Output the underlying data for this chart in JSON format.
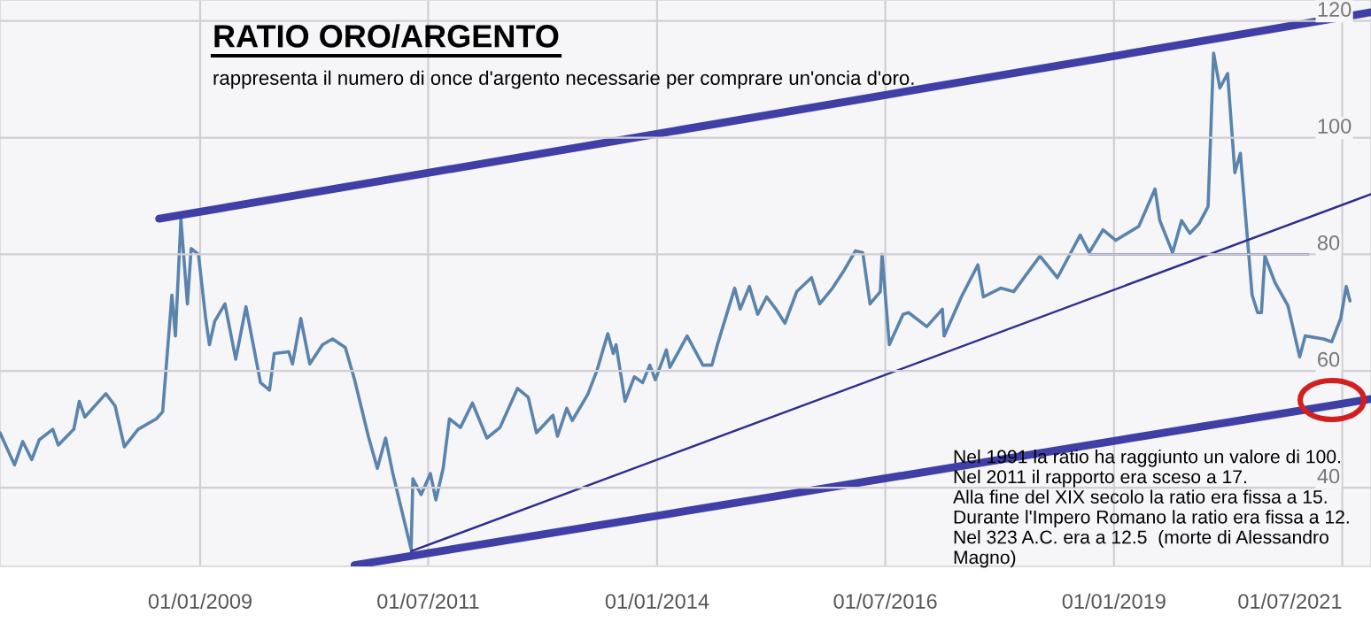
{
  "chart_data": {
    "type": "line",
    "title": "RATIO ORO/ARGENTO",
    "subtitle": "rappresenta il numero di once d'argento necessarie per comprare un'oncia d'oro.",
    "annotations": [
      "Nel 1991 la ratio ha raggiunto un valore di 100.\nNel 2011 il rapporto era sceso a 17.\nAlla fine del XIX secolo la ratio era fissa a 15.\nDurante l'Impero Romano la ratio era fissa a 12.\nNel 323 A.C. era a 12.5  (morte di Alessandro\nMagno)"
    ],
    "xlim": [
      "2006-10-24",
      "2021-10-24"
    ],
    "ylim": [
      26.5,
      123.6
    ],
    "xticks": [
      {
        "value": "2009-01-01",
        "label": "01/01/2009"
      },
      {
        "value": "2011-07-01",
        "label": "01/07/2011"
      },
      {
        "value": "2014-01-01",
        "label": "01/01/2014"
      },
      {
        "value": "2016-07-01",
        "label": "01/07/2016"
      },
      {
        "value": "2019-01-01",
        "label": "01/01/2019"
      },
      {
        "value": "2021-07-01",
        "label": "01/07/2021"
      }
    ],
    "yticks": [
      40,
      60,
      80,
      100,
      120
    ],
    "grid": true,
    "series": [
      {
        "color": "#5b84ad",
        "x": [
          "2006-10-24",
          "2006-12-21",
          "2007-01-23",
          "2007-02-28",
          "2007-03-30",
          "2007-05-23",
          "2007-06-14",
          "2007-08-15",
          "2007-09-06",
          "2007-09-28",
          "2007-12-21",
          "2008-01-27",
          "2008-03-04",
          "2008-04-28",
          "2008-07-10",
          "2008-08-04",
          "2008-09-10",
          "2008-09-24",
          "2008-10-16",
          "2008-11-11",
          "2008-11-26",
          "2008-12-25",
          "2009-01-23",
          "2009-02-07",
          "2009-02-28",
          "2009-04-10",
          "2009-05-23",
          "2009-07-03",
          "2009-08-30",
          "2009-10-05",
          "2009-10-24",
          "2009-12-21",
          "2010-01-05",
          "2010-02-07",
          "2010-03-15",
          "2010-05-05",
          "2010-06-14",
          "2010-08-04",
          "2010-09-10",
          "2010-11-04",
          "2010-12-10",
          "2011-01-12",
          "2011-02-10",
          "2011-04-24",
          "2011-05-01",
          "2011-06-03",
          "2011-07-10",
          "2011-08-01",
          "2011-08-30",
          "2011-09-24",
          "2011-11-07",
          "2011-12-25",
          "2012-02-21",
          "2012-04-13",
          "2012-06-22",
          "2012-08-04",
          "2012-09-06",
          "2012-11-11",
          "2012-11-29",
          "2013-01-05",
          "2013-01-27",
          "2013-03-30",
          "2013-05-05",
          "2013-06-18",
          "2013-07-10",
          "2013-07-21",
          "2013-08-26",
          "2013-10-02",
          "2013-11-04",
          "2013-12-03",
          "2013-12-25",
          "2014-02-07",
          "2014-02-21",
          "2014-05-01",
          "2014-07-03",
          "2014-08-08",
          "2014-08-30",
          "2014-09-21",
          "2014-11-07",
          "2014-11-29",
          "2015-01-05",
          "2015-02-07",
          "2015-03-15",
          "2015-04-21",
          "2015-05-27",
          "2015-07-13",
          "2015-09-10",
          "2015-10-13",
          "2015-12-03",
          "2016-01-19",
          "2016-03-04",
          "2016-04-02",
          "2016-05-01",
          "2016-06-11",
          "2016-06-18",
          "2016-07-17",
          "2016-09-10",
          "2016-10-02",
          "2016-12-14",
          "2017-02-14",
          "2017-02-21",
          "2017-05-01",
          "2017-07-06",
          "2017-07-28",
          "2017-10-05",
          "2017-11-26",
          "2018-03-11",
          "2018-05-20",
          "2018-08-19",
          "2018-09-24",
          "2018-11-18",
          "2019-01-08",
          "2019-04-10",
          "2019-06-14",
          "2019-07-03",
          "2019-08-23",
          "2019-09-28",
          "2019-10-31",
          "2019-12-06",
          "2020-01-12",
          "2020-02-03",
          "2020-02-28",
          "2020-03-30",
          "2020-04-28",
          "2020-05-20",
          "2020-07-06",
          "2020-07-28",
          "2020-08-12",
          "2020-08-26",
          "2020-10-05",
          "2020-11-26",
          "2021-01-12",
          "2021-02-03",
          "2021-04-17",
          "2021-05-20",
          "2021-06-25",
          "2021-07-17",
          "2021-08-01"
        ],
        "values": [
          49.4,
          43.9,
          47.9,
          44.8,
          48.2,
          50.0,
          47.3,
          50.0,
          54.8,
          52.1,
          56.1,
          54.0,
          47.0,
          50.0,
          51.8,
          53.0,
          73.0,
          66.0,
          86.0,
          71.5,
          81.0,
          80.0,
          69.0,
          64.5,
          68.5,
          71.5,
          62.0,
          71.0,
          58.0,
          56.7,
          63.0,
          63.3,
          61.2,
          69.0,
          61.2,
          64.5,
          65.5,
          64.0,
          58.5,
          48.8,
          43.3,
          48.5,
          42.4,
          29.4,
          41.5,
          38.8,
          42.4,
          37.9,
          43.3,
          51.8,
          50.3,
          54.5,
          48.5,
          50.3,
          57.0,
          55.5,
          49.4,
          52.4,
          48.8,
          53.6,
          51.5,
          56.0,
          60.0,
          66.4,
          63.0,
          64.5,
          54.8,
          59.0,
          58.0,
          61.0,
          58.5,
          63.6,
          60.6,
          66.0,
          61.0,
          61.0,
          64.5,
          67.6,
          74.2,
          70.6,
          74.5,
          69.7,
          72.7,
          70.6,
          68.2,
          73.6,
          76.0,
          71.5,
          74.2,
          77.3,
          80.6,
          80.3,
          71.5,
          73.6,
          80.0,
          64.5,
          69.7,
          70.0,
          67.6,
          70.6,
          66.0,
          72.7,
          78.2,
          72.7,
          74.2,
          73.6,
          79.7,
          76.0,
          83.3,
          80.3,
          84.2,
          82.4,
          84.8,
          91.2,
          85.8,
          80.3,
          85.8,
          83.6,
          85.2,
          88.2,
          114.5,
          108.5,
          111.0,
          94.0,
          97.3,
          73.0,
          70.0,
          70.0,
          79.7,
          75.2,
          71.2,
          62.4,
          66.0,
          65.5,
          65.0,
          69.0,
          74.5,
          72.0
        ]
      },
      {
        "type": "line",
        "color": "#3f3fa6",
        "x": [
          "2008-07-21",
          "2021-10-24"
        ],
        "values": [
          86.1,
          121.5
        ]
      },
      {
        "type": "line",
        "color": "#3f3fa6",
        "x": [
          "2010-09-10",
          "2021-10-24"
        ],
        "values": [
          26.7,
          55.2
        ]
      },
      {
        "type": "line",
        "color": "#2e2e90",
        "x": [
          "2011-04-24",
          "2021-10-24"
        ],
        "values": [
          29.1,
          90.3
        ]
      },
      {
        "type": "line",
        "color": "#2e2e90",
        "x": [
          "2018-09-24",
          "2021-02-17"
        ],
        "values": [
          80,
          80
        ]
      }
    ]
  }
}
